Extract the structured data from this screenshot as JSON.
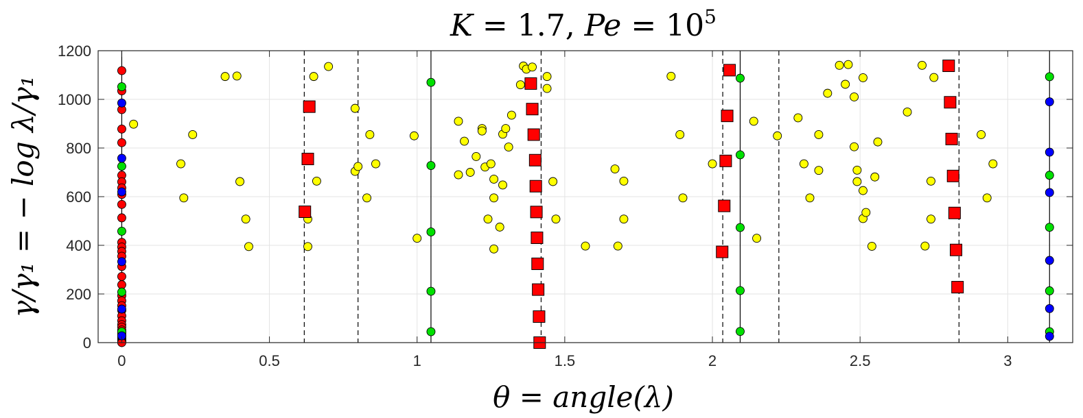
{
  "chart_data": {
    "type": "scatter",
    "title": "K = 1.7, Pe = 10^5",
    "title_parts": {
      "k_var": "K",
      "k_eq": " = 1.7, ",
      "pe_var": "Pe",
      "pe_eq": " = 10",
      "pe_exp": "5"
    },
    "xlabel": "θ = angle(λ)",
    "ylabel": "γ/γ₁ = − log λ/γ₁",
    "xlim": [
      -0.08,
      3.22
    ],
    "ylim": [
      0,
      1200
    ],
    "xticks": [
      0,
      0.5,
      1,
      1.5,
      2,
      2.5,
      3
    ],
    "xtick_labels": [
      "0",
      "0.5",
      "1",
      "1.5",
      "2",
      "2.5",
      "3"
    ],
    "yticks": [
      0,
      200,
      400,
      600,
      800,
      1000,
      1200
    ],
    "ytick_labels": [
      "0",
      "200",
      "400",
      "600",
      "800",
      "1000",
      "1200"
    ],
    "grid": true,
    "vertical_lines": [
      {
        "x": 0,
        "style": "solid"
      },
      {
        "x": 1.047,
        "style": "solid"
      },
      {
        "x": 2.094,
        "style": "solid"
      },
      {
        "x": 3.1416,
        "style": "solid"
      },
      {
        "x": 0.618,
        "style": "dashed"
      },
      {
        "x": 0.8,
        "style": "dashed"
      },
      {
        "x": 1.42,
        "style": "dashed"
      },
      {
        "x": 2.035,
        "style": "dashed"
      },
      {
        "x": 2.225,
        "style": "dashed"
      },
      {
        "x": 2.835,
        "style": "dashed"
      }
    ],
    "series": [
      {
        "name": "red circles",
        "marker": "circle",
        "color": "#ff0000",
        "x": [
          0,
          0,
          0,
          0,
          0,
          0,
          0,
          0,
          0,
          0,
          0,
          0,
          0,
          0,
          0,
          0,
          0,
          0,
          0,
          0,
          0,
          0,
          0,
          0,
          0,
          0,
          0,
          0,
          0,
          0,
          0,
          0,
          0,
          0,
          0,
          0
        ],
        "y": [
          1118,
          1035,
          958,
          878,
          822,
          688,
          661,
          636,
          609,
          568,
          513,
          412,
          393,
          375,
          355,
          313,
          272,
          238,
          193,
          172,
          152,
          132,
          110,
          90,
          74,
          64,
          52,
          43,
          35,
          27,
          20,
          14,
          9,
          5,
          2,
          0
        ]
      },
      {
        "name": "green circles",
        "marker": "circle",
        "color": "#00e000",
        "x": [
          0,
          0,
          0,
          0,
          0,
          1.047,
          1.047,
          1.047,
          1.047,
          1.047,
          2.094,
          2.094,
          2.094,
          2.094,
          2.094,
          3.1416,
          3.1416,
          3.1416,
          3.1416,
          3.1416
        ],
        "y": [
          1052,
          725,
          458,
          208,
          45,
          1070,
          728,
          455,
          211,
          45,
          1087,
          772,
          473,
          214,
          46,
          1093,
          688,
          474,
          213,
          45
        ]
      },
      {
        "name": "blue circles",
        "marker": "circle",
        "color": "#0000ff",
        "x": [
          0,
          0,
          0,
          0,
          0,
          0,
          3.1416,
          3.1416,
          3.1416,
          3.1416,
          3.1416,
          3.1416
        ],
        "y": [
          985,
          758,
          620,
          333,
          138,
          28,
          990,
          783,
          617,
          338,
          140,
          26
        ]
      },
      {
        "name": "yellow circles",
        "marker": "circle",
        "color": "#ffff00",
        "x": [
          0.04,
          0.2,
          0.21,
          0.24,
          0.35,
          0.39,
          0.4,
          0.42,
          0.43,
          0.63,
          0.63,
          0.65,
          0.66,
          0.7,
          0.79,
          0.79,
          0.8,
          0.83,
          0.84,
          0.86,
          0.99,
          1.0,
          1.14,
          1.14,
          1.16,
          1.18,
          1.2,
          1.22,
          1.22,
          1.23,
          1.24,
          1.25,
          1.26,
          1.26,
          1.26,
          1.28,
          1.29,
          1.29,
          1.3,
          1.31,
          1.32,
          1.35,
          1.36,
          1.37,
          1.39,
          1.44,
          1.44,
          1.46,
          1.47,
          1.57,
          1.67,
          1.68,
          1.7,
          1.7,
          1.86,
          1.89,
          1.9,
          2.0,
          2.14,
          2.15,
          2.22,
          2.29,
          2.31,
          2.33,
          2.36,
          2.36,
          2.39,
          2.43,
          2.45,
          2.46,
          2.48,
          2.48,
          2.49,
          2.49,
          2.51,
          2.51,
          2.51,
          2.52,
          2.54,
          2.55,
          2.56,
          2.66,
          2.71,
          2.72,
          2.74,
          2.74,
          2.75,
          2.91,
          2.93,
          2.95
        ],
        "y": [
          898,
          735,
          595,
          855,
          1094,
          1096,
          662,
          508,
          395,
          395,
          508,
          1094,
          664,
          1135,
          963,
          704,
          724,
          595,
          855,
          735,
          850,
          429,
          910,
          690,
          828,
          700,
          765,
          880,
          870,
          722,
          508,
          735,
          672,
          595,
          385,
          475,
          857,
          648,
          880,
          804,
          935,
          1060,
          1137,
          1124,
          1133,
          1045,
          1094,
          662,
          508,
          397,
          714,
          397,
          508,
          664,
          1095,
          855,
          595,
          735,
          910,
          429,
          850,
          924,
          735,
          595,
          855,
          708,
          1025,
          1140,
          1062,
          1143,
          1010,
          805,
          709,
          662,
          1089,
          510,
          625,
          535,
          396,
          681,
          825,
          948,
          1140,
          397,
          508,
          664,
          1090,
          855,
          595,
          735
        ]
      },
      {
        "name": "red squares",
        "marker": "square",
        "color": "#ff0000",
        "x": [
          0.62,
          0.63,
          0.635,
          1.385,
          1.39,
          1.395,
          1.4,
          1.402,
          1.404,
          1.406,
          1.408,
          1.41,
          1.413,
          1.415,
          2.033,
          2.04,
          2.045,
          2.05,
          2.058,
          2.8,
          2.805,
          2.81,
          2.815,
          2.82,
          2.825,
          2.83
        ],
        "y": [
          538,
          755,
          970,
          1065,
          960,
          855,
          750,
          643,
          537,
          431,
          324,
          218,
          107,
          0,
          373,
          562,
          747,
          932,
          1120,
          1138,
          988,
          837,
          685,
          533,
          381,
          228
        ]
      }
    ]
  }
}
